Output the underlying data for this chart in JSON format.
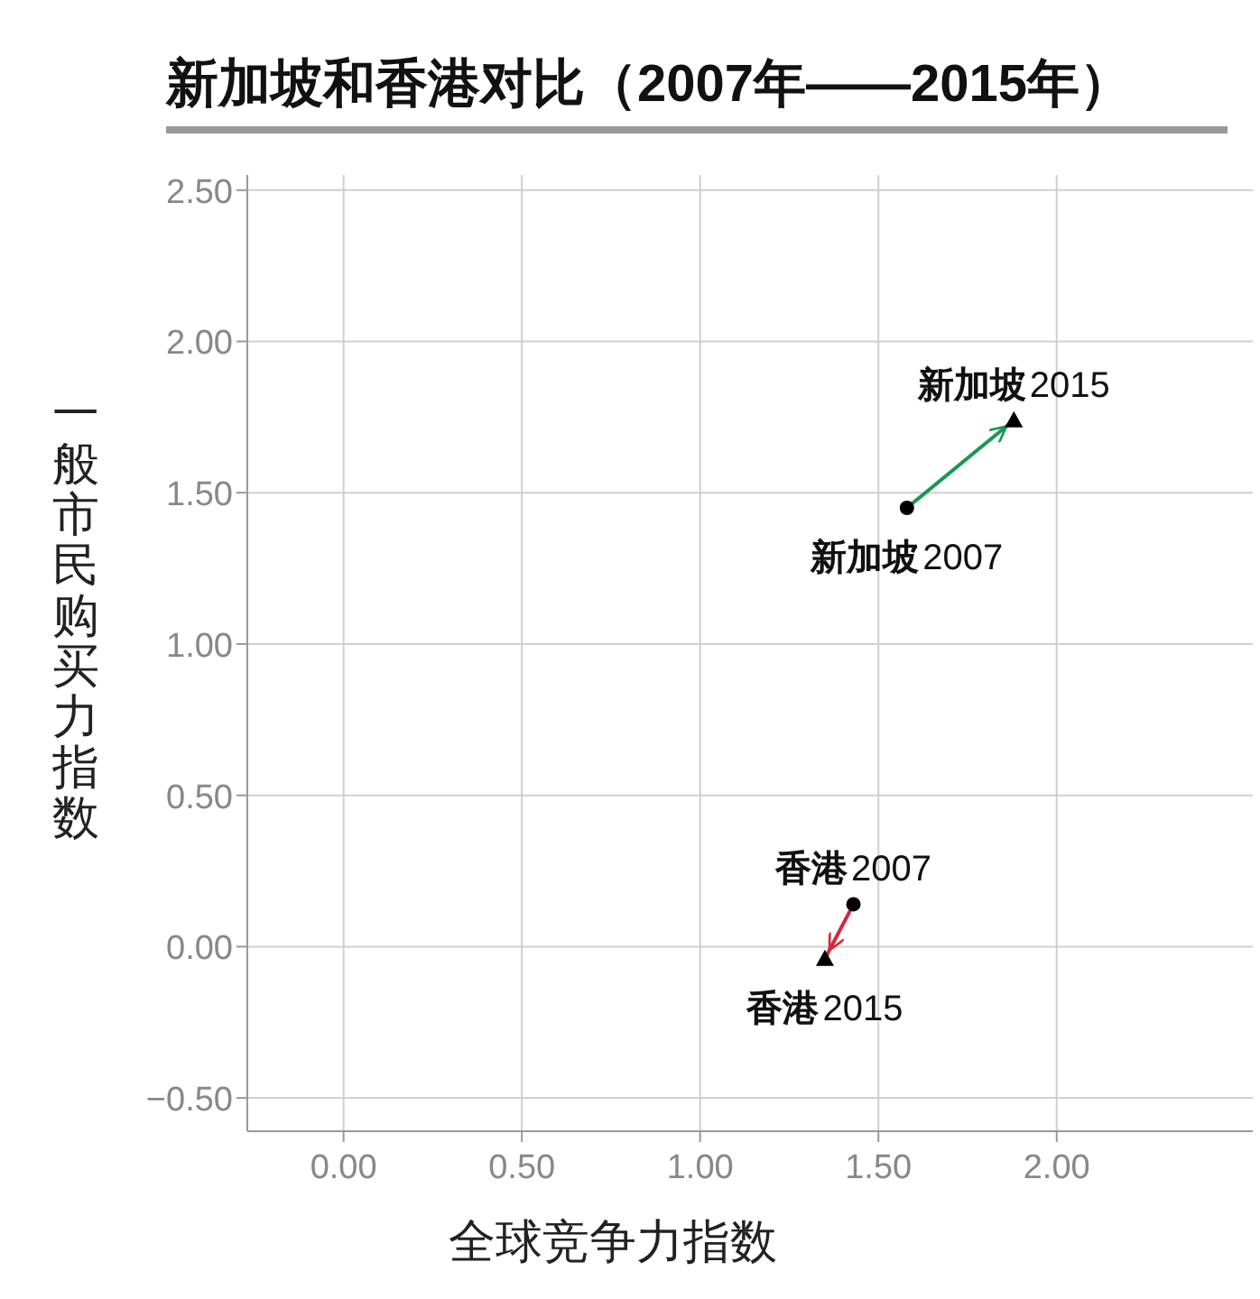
{
  "chart_data": {
    "type": "scatter",
    "title": "新加坡和香港对比（2007年——2015年）",
    "xlabel": "全球竞争力指数",
    "ylabel": "一般市民购买力指数",
    "series": [
      {
        "type": "line",
        "color": "#1a9850",
        "x": [
          1.58,
          1.88
        ],
        "values": [
          1.45,
          1.74
        ]
      },
      {
        "type": "line",
        "color": "#d7263d",
        "x": [
          1.43,
          1.35
        ],
        "values": [
          0.14,
          -0.04
        ]
      },
      {
        "marker": "circle",
        "color": "#000000",
        "x": [
          1.58,
          1.43
        ],
        "values": [
          1.45,
          0.14
        ]
      },
      {
        "marker": "triangle",
        "color": "#000000",
        "x": [
          1.88,
          1.35
        ],
        "values": [
          1.74,
          -0.04
        ]
      }
    ],
    "annotations": [
      {
        "text": "新加坡2015",
        "x": 1.88,
        "y": 1.74
      },
      {
        "text": "新加坡2007",
        "x": 1.58,
        "y": 1.45
      },
      {
        "text": "香港2007",
        "x": 1.43,
        "y": 0.14
      },
      {
        "text": "香港2015",
        "x": 1.35,
        "y": -0.04
      }
    ],
    "xlim": [
      -0.27,
      2.55
    ],
    "ylim": [
      -0.61,
      2.55
    ],
    "xticks": [
      {
        "value": 0,
        "label": "0.00"
      },
      {
        "value": 0.5,
        "label": "0.50"
      },
      {
        "value": 1,
        "label": "1.00"
      },
      {
        "value": 1.5,
        "label": "1.50"
      },
      {
        "value": 2,
        "label": "2.00"
      }
    ],
    "yticks": [
      {
        "value": -0.5,
        "label": "−0.50"
      },
      {
        "value": 0,
        "label": "0.00"
      },
      {
        "value": 0.5,
        "label": "0.50"
      },
      {
        "value": 1,
        "label": "1.00"
      },
      {
        "value": 1.5,
        "label": "1.50"
      },
      {
        "value": 2,
        "label": "2.00"
      },
      {
        "value": 2.5,
        "label": "2.50"
      }
    ],
    "grid": true
  }
}
